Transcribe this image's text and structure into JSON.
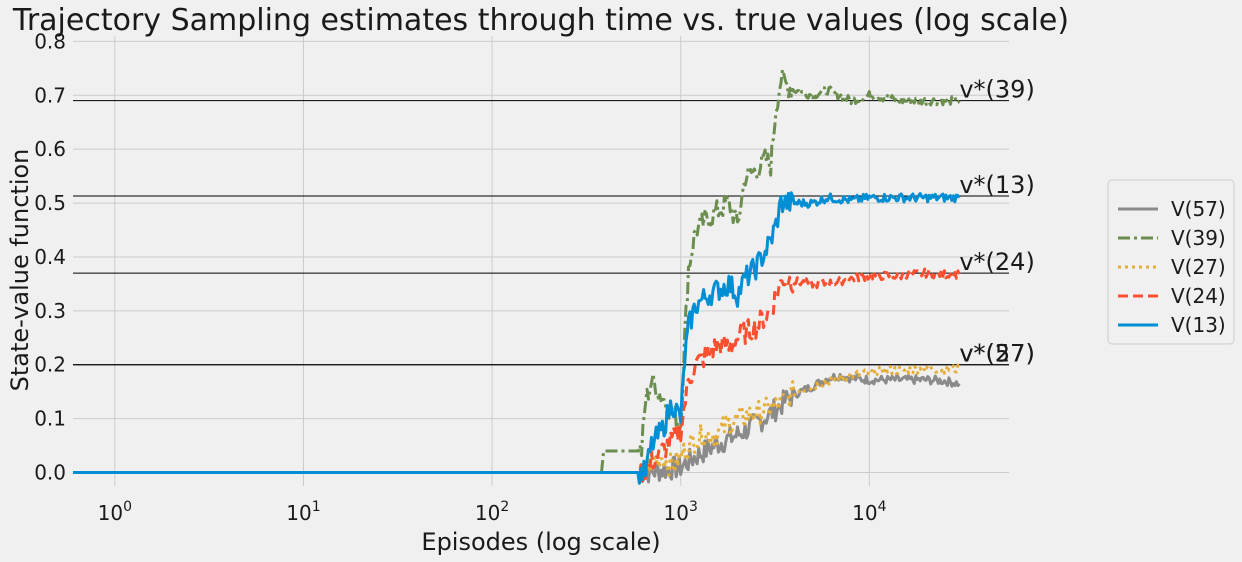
{
  "chart_data": {
    "type": "line",
    "title": "Trajectory Sampling estimates through time vs. true values (log scale)",
    "xlabel": "Episodes (log scale)",
    "ylabel": "State-value function",
    "x_scale": "log",
    "xlim": [
      0.6,
      55000
    ],
    "ylim": [
      -0.025,
      0.81
    ],
    "x_ticks": [
      {
        "value": 1,
        "base": "10",
        "exp": "0"
      },
      {
        "value": 10,
        "base": "10",
        "exp": "1"
      },
      {
        "value": 100,
        "base": "10",
        "exp": "2"
      },
      {
        "value": 1000,
        "base": "10",
        "exp": "3"
      },
      {
        "value": 10000,
        "base": "10",
        "exp": "4"
      }
    ],
    "y_ticks": [
      "0.0",
      "0.1",
      "0.2",
      "0.3",
      "0.4",
      "0.5",
      "0.6",
      "0.7",
      "0.8"
    ],
    "grid": true,
    "legend_position": "outside-right",
    "true_values": [
      {
        "label": "v*(39)",
        "value": 0.69
      },
      {
        "label": "v*(13)",
        "value": 0.513
      },
      {
        "label": "v*(24)",
        "value": 0.37
      },
      {
        "label": "v*(27)",
        "value": 0.2
      },
      {
        "label": "v*(57)",
        "value": 0.2
      }
    ],
    "series": [
      {
        "name": "V(57)",
        "color": "#8b8b8b",
        "dash": "solid",
        "points": [
          [
            0.6,
            0.0
          ],
          [
            650,
            0.0
          ],
          [
            800,
            0.005
          ],
          [
            1000,
            0.01
          ],
          [
            1200,
            0.03
          ],
          [
            1500,
            0.05
          ],
          [
            2000,
            0.07
          ],
          [
            2500,
            0.09
          ],
          [
            3000,
            0.11
          ],
          [
            3500,
            0.13
          ],
          [
            4000,
            0.145
          ],
          [
            5000,
            0.16
          ],
          [
            6000,
            0.175
          ],
          [
            7000,
            0.18
          ],
          [
            8000,
            0.175
          ],
          [
            10000,
            0.172
          ],
          [
            15000,
            0.172
          ],
          [
            20000,
            0.172
          ],
          [
            25000,
            0.17
          ],
          [
            30000,
            0.165
          ]
        ]
      },
      {
        "name": "V(39)",
        "color": "#6b8e4e",
        "dash": "dashdot",
        "points": [
          [
            0.6,
            0.0
          ],
          [
            380,
            0.0
          ],
          [
            390,
            0.04
          ],
          [
            620,
            0.04
          ],
          [
            650,
            0.13
          ],
          [
            700,
            0.17
          ],
          [
            800,
            0.14
          ],
          [
            900,
            0.11
          ],
          [
            1000,
            0.09
          ],
          [
            1050,
            0.25
          ],
          [
            1100,
            0.38
          ],
          [
            1200,
            0.45
          ],
          [
            1500,
            0.48
          ],
          [
            1800,
            0.5
          ],
          [
            2000,
            0.46
          ],
          [
            2200,
            0.55
          ],
          [
            2500,
            0.56
          ],
          [
            2800,
            0.58
          ],
          [
            3000,
            0.57
          ],
          [
            3200,
            0.68
          ],
          [
            3400,
            0.73
          ],
          [
            3600,
            0.72
          ],
          [
            4000,
            0.71
          ],
          [
            5000,
            0.7
          ],
          [
            6000,
            0.71
          ],
          [
            8000,
            0.69
          ],
          [
            10000,
            0.7
          ],
          [
            15000,
            0.69
          ],
          [
            20000,
            0.69
          ],
          [
            25000,
            0.69
          ],
          [
            30000,
            0.69
          ]
        ]
      },
      {
        "name": "V(27)",
        "color": "#e5ae38",
        "dash": "dotted",
        "points": [
          [
            0.6,
            0.0
          ],
          [
            650,
            0.0
          ],
          [
            700,
            0.02
          ],
          [
            800,
            0.03
          ],
          [
            900,
            0.01
          ],
          [
            1000,
            0.03
          ],
          [
            1100,
            0.05
          ],
          [
            1300,
            0.07
          ],
          [
            1500,
            0.07
          ],
          [
            1800,
            0.09
          ],
          [
            2000,
            0.1
          ],
          [
            2500,
            0.11
          ],
          [
            3000,
            0.12
          ],
          [
            3500,
            0.13
          ],
          [
            4000,
            0.15
          ],
          [
            5000,
            0.16
          ],
          [
            6000,
            0.17
          ],
          [
            8000,
            0.18
          ],
          [
            10000,
            0.185
          ],
          [
            12000,
            0.19
          ],
          [
            15000,
            0.19
          ],
          [
            20000,
            0.193
          ],
          [
            25000,
            0.192
          ],
          [
            30000,
            0.192
          ]
        ]
      },
      {
        "name": "V(24)",
        "color": "#fc4f30",
        "dash": "dashed",
        "points": [
          [
            0.6,
            0.0
          ],
          [
            650,
            0.0
          ],
          [
            700,
            0.02
          ],
          [
            800,
            0.04
          ],
          [
            900,
            0.06
          ],
          [
            1000,
            0.08
          ],
          [
            1100,
            0.17
          ],
          [
            1200,
            0.2
          ],
          [
            1400,
            0.22
          ],
          [
            1600,
            0.24
          ],
          [
            1800,
            0.23
          ],
          [
            2000,
            0.25
          ],
          [
            2200,
            0.26
          ],
          [
            2500,
            0.27
          ],
          [
            2800,
            0.29
          ],
          [
            3000,
            0.3
          ],
          [
            3200,
            0.33
          ],
          [
            3500,
            0.36
          ],
          [
            4000,
            0.355
          ],
          [
            5000,
            0.35
          ],
          [
            6000,
            0.35
          ],
          [
            8000,
            0.36
          ],
          [
            10000,
            0.365
          ],
          [
            15000,
            0.365
          ],
          [
            20000,
            0.37
          ],
          [
            25000,
            0.368
          ],
          [
            30000,
            0.368
          ]
        ]
      },
      {
        "name": "V(13)",
        "color": "#008fd5",
        "dash": "solid",
        "points": [
          [
            0.6,
            0.0
          ],
          [
            650,
            0.0
          ],
          [
            700,
            0.05
          ],
          [
            800,
            0.08
          ],
          [
            900,
            0.13
          ],
          [
            1000,
            0.1
          ],
          [
            1050,
            0.21
          ],
          [
            1100,
            0.27
          ],
          [
            1200,
            0.31
          ],
          [
            1400,
            0.33
          ],
          [
            1600,
            0.34
          ],
          [
            1800,
            0.35
          ],
          [
            2000,
            0.33
          ],
          [
            2200,
            0.36
          ],
          [
            2500,
            0.38
          ],
          [
            2800,
            0.41
          ],
          [
            3000,
            0.43
          ],
          [
            3200,
            0.46
          ],
          [
            3400,
            0.5
          ],
          [
            4000,
            0.5
          ],
          [
            5000,
            0.5
          ],
          [
            6000,
            0.51
          ],
          [
            8000,
            0.505
          ],
          [
            10000,
            0.51
          ],
          [
            15000,
            0.51
          ],
          [
            20000,
            0.51
          ],
          [
            25000,
            0.51
          ],
          [
            30000,
            0.51
          ]
        ]
      }
    ]
  }
}
